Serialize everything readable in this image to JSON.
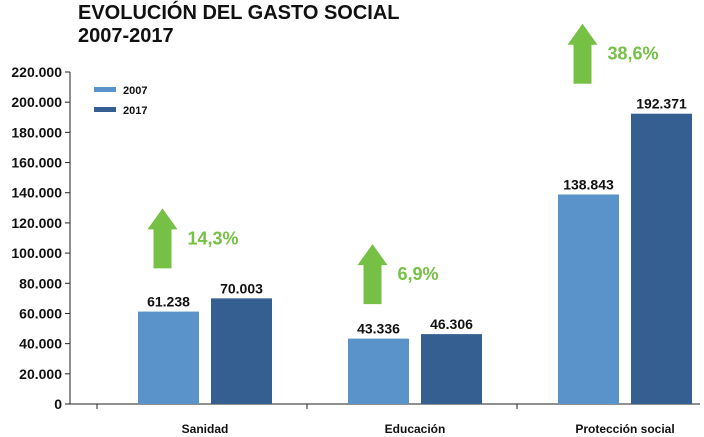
{
  "page": {
    "title_line1": "EVOLUCIÓN DEL GASTO SOCIAL",
    "title_line2": "2007-2017"
  },
  "colors": {
    "series_2007": "#5a93c9",
    "series_2017": "#355f90",
    "growth": "#76c046",
    "axis": "#222222"
  },
  "chart_data": {
    "type": "bar",
    "title": "EVOLUCIÓN DEL GASTO SOCIAL 2007-2017",
    "xlabel": "",
    "ylabel": "",
    "ylim": [
      0,
      220000
    ],
    "y_tick_labels": [
      "0",
      "20.000",
      "40.000",
      "60.000",
      "80.000",
      "100.000",
      "120.000",
      "140.000",
      "160.000",
      "180.000",
      "200.000",
      "220.000"
    ],
    "categories": [
      "Sanidad",
      "Educación",
      "Protección social"
    ],
    "series": [
      {
        "name": "2007",
        "values": [
          61238,
          43336,
          138843
        ],
        "labels": [
          "61.238",
          "43.336",
          "138.843"
        ]
      },
      {
        "name": "2017",
        "values": [
          70003,
          46306,
          192371
        ],
        "labels": [
          "70.003",
          "46.306",
          "192.371"
        ]
      }
    ],
    "growth": [
      "14,3%",
      "6,9%",
      "38,6%"
    ],
    "growth_icon": "up-arrow-icon",
    "legend_position": "top-left",
    "grid": false
  }
}
